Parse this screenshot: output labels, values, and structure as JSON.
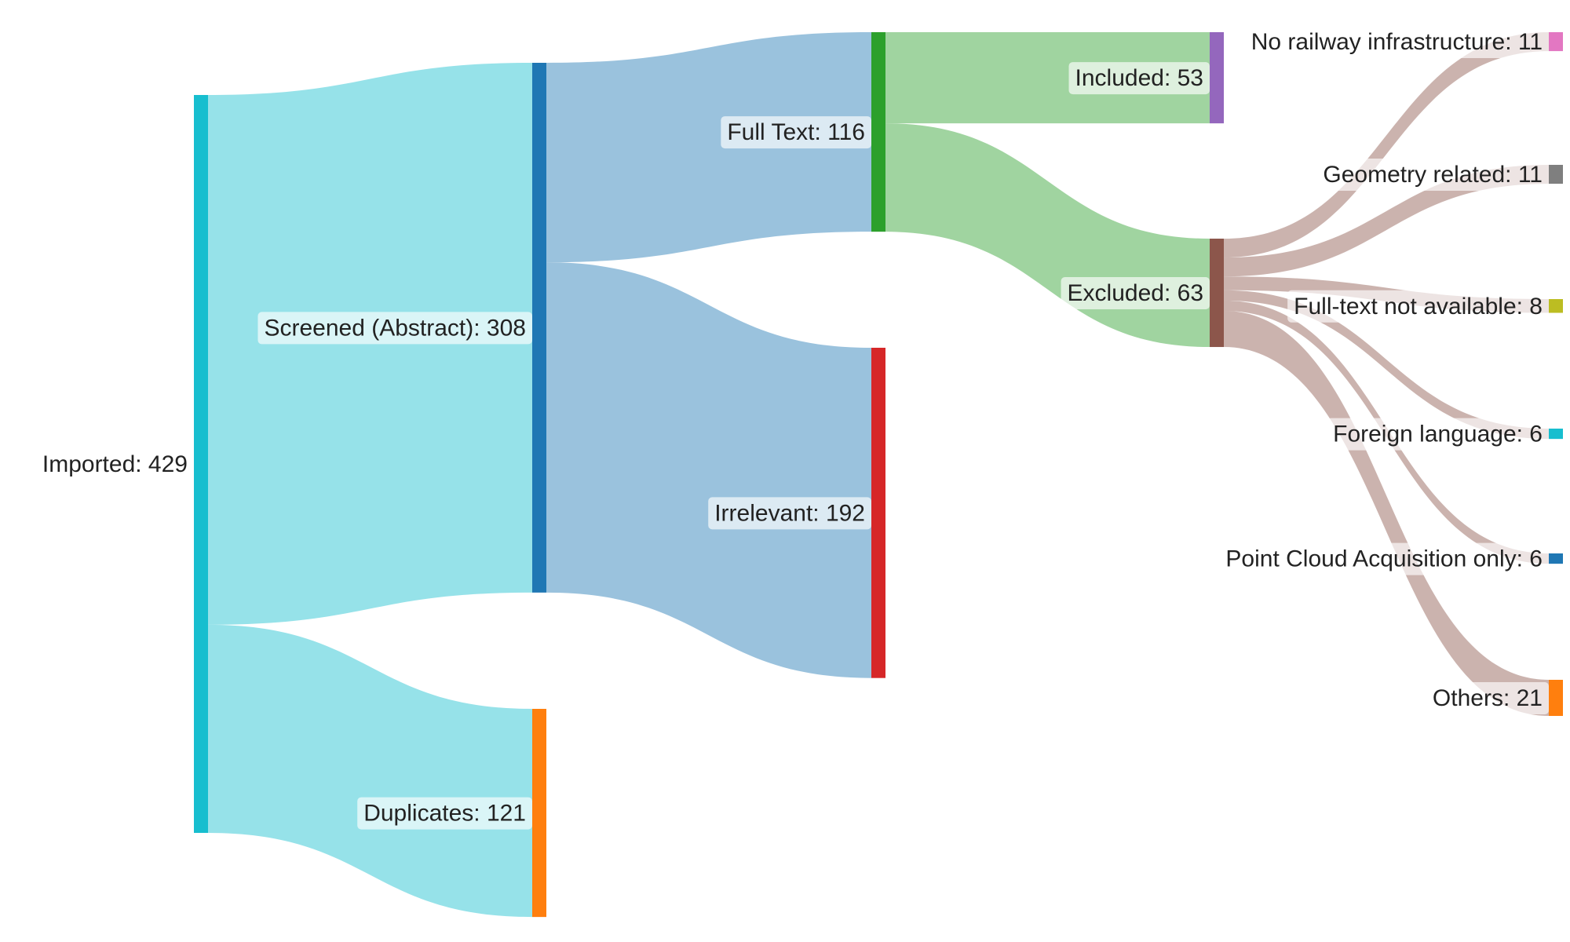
{
  "diagram": {
    "type": "sankey",
    "nodes": [
      {
        "id": "imported",
        "label": "Imported: 429",
        "value": 429,
        "color": "#17becf"
      },
      {
        "id": "screened",
        "label": "Screened (Abstract): 308",
        "value": 308,
        "color": "#1f77b4"
      },
      {
        "id": "duplicates",
        "label": "Duplicates: 121",
        "value": 121,
        "color": "#ff7f0e"
      },
      {
        "id": "fulltext",
        "label": "Full Text: 116",
        "value": 116,
        "color": "#2ca02c"
      },
      {
        "id": "irrelevant",
        "label": "Irrelevant: 192",
        "value": 192,
        "color": "#d62728"
      },
      {
        "id": "included",
        "label": "Included: 53",
        "value": 53,
        "color": "#9467bd"
      },
      {
        "id": "excluded",
        "label": "Excluded: 63",
        "value": 63,
        "color": "#8c564b"
      },
      {
        "id": "no-railway",
        "label": "No railway infrastructure: 11",
        "value": 11,
        "color": "#e377c2"
      },
      {
        "id": "geometry",
        "label": "Geometry related: 11",
        "value": 11,
        "color": "#7f7f7f"
      },
      {
        "id": "no-fulltext",
        "label": "Full-text not available: 8",
        "value": 8,
        "color": "#bcbd22"
      },
      {
        "id": "foreign",
        "label": "Foreign language: 6",
        "value": 6,
        "color": "#17becf"
      },
      {
        "id": "point-cloud",
        "label": "Point Cloud Acquisition only: 6",
        "value": 6,
        "color": "#1f77b4"
      },
      {
        "id": "others",
        "label": "Others: 21",
        "value": 21,
        "color": "#ff7f0e"
      }
    ],
    "links": [
      {
        "source": "imported",
        "target": "screened",
        "value": 308
      },
      {
        "source": "imported",
        "target": "duplicates",
        "value": 121
      },
      {
        "source": "screened",
        "target": "fulltext",
        "value": 116
      },
      {
        "source": "screened",
        "target": "irrelevant",
        "value": 192
      },
      {
        "source": "fulltext",
        "target": "included",
        "value": 53
      },
      {
        "source": "fulltext",
        "target": "excluded",
        "value": 63
      },
      {
        "source": "excluded",
        "target": "no-railway",
        "value": 11
      },
      {
        "source": "excluded",
        "target": "geometry",
        "value": 11
      },
      {
        "source": "excluded",
        "target": "no-fulltext",
        "value": 8
      },
      {
        "source": "excluded",
        "target": "foreign",
        "value": 6
      },
      {
        "source": "excluded",
        "target": "point-cloud",
        "value": 6
      },
      {
        "source": "excluded",
        "target": "others",
        "value": 21
      }
    ]
  }
}
